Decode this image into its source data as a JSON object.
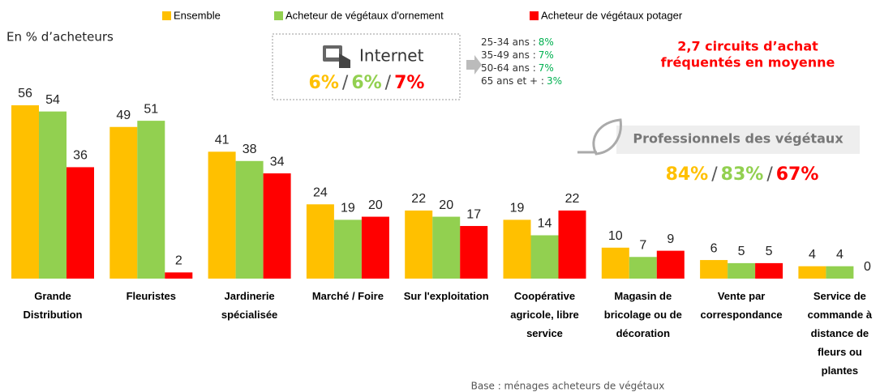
{
  "chart_data": {
    "type": "bar",
    "subtitle": "En % d’acheteurs",
    "categories": [
      "Grande Distribution",
      "Fleuristes",
      "Jardinerie spécialisée",
      "Marché / Foire",
      "Sur l'exploitation",
      "Coopérative agricole, libre service",
      "Magasin de bricolage ou de décoration",
      "Vente par correspondance",
      "Service de commande à distance de fleurs ou plantes"
    ],
    "series": [
      {
        "name": "Ensemble",
        "color": "#FFC000",
        "values": [
          56,
          49,
          41,
          24,
          22,
          19,
          10,
          6,
          4
        ]
      },
      {
        "name": "Acheteur de végétaux d'ornement",
        "color": "#92D050",
        "values": [
          54,
          51,
          38,
          19,
          20,
          14,
          7,
          5,
          4
        ]
      },
      {
        "name": "Acheteur de végétaux potager",
        "color": "#FF0000",
        "values": [
          36,
          2,
          34,
          20,
          17,
          22,
          9,
          5,
          0
        ]
      }
    ],
    "internet": {
      "label": "Internet",
      "values": [
        "6%",
        "6%",
        "7%"
      ],
      "separator": "/"
    },
    "ages": [
      {
        "label": "25-34 ans :",
        "value": "8%"
      },
      {
        "label": "35-49 ans :",
        "value": "7%"
      },
      {
        "label": "50-64 ans :",
        "value": "7%"
      },
      {
        "label": "65 ans et + :",
        "value": "3%"
      }
    ],
    "annotation": [
      "2,7 circuits d’achat",
      "fréquentés en moyenne"
    ],
    "professionals": {
      "label": "Professionnels des végétaux",
      "values": [
        "84%",
        "83%",
        "67%"
      ],
      "separator": "/"
    },
    "footnote": "Base : ménages  acheteurs de végétaux"
  }
}
